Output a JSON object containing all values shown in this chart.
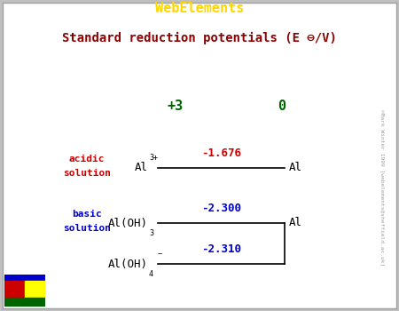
{
  "title_bar_text": "WebElements",
  "title_bar_bg": "#8B0000",
  "title_bar_color": "#FFD700",
  "subtitle_color": "#8B0000",
  "header_bg": "#FFFFC0",
  "border_color": "#A0A0A0",
  "outer_bg": "#C0C0C0",
  "ox_state_color": "#006400",
  "acidic_color": "#CC0000",
  "basic_color": "#0000CC",
  "acidic_potential": "-1.676",
  "basic_potential1": "-2.300",
  "basic_potential2": "-2.310",
  "watermark": "©Mark Winter 1999 [webelements@sheffield.ac.uk]",
  "watermark_color": "#A0A0A0",
  "fig_width": 4.5,
  "fig_height": 3.5,
  "dpi": 100
}
